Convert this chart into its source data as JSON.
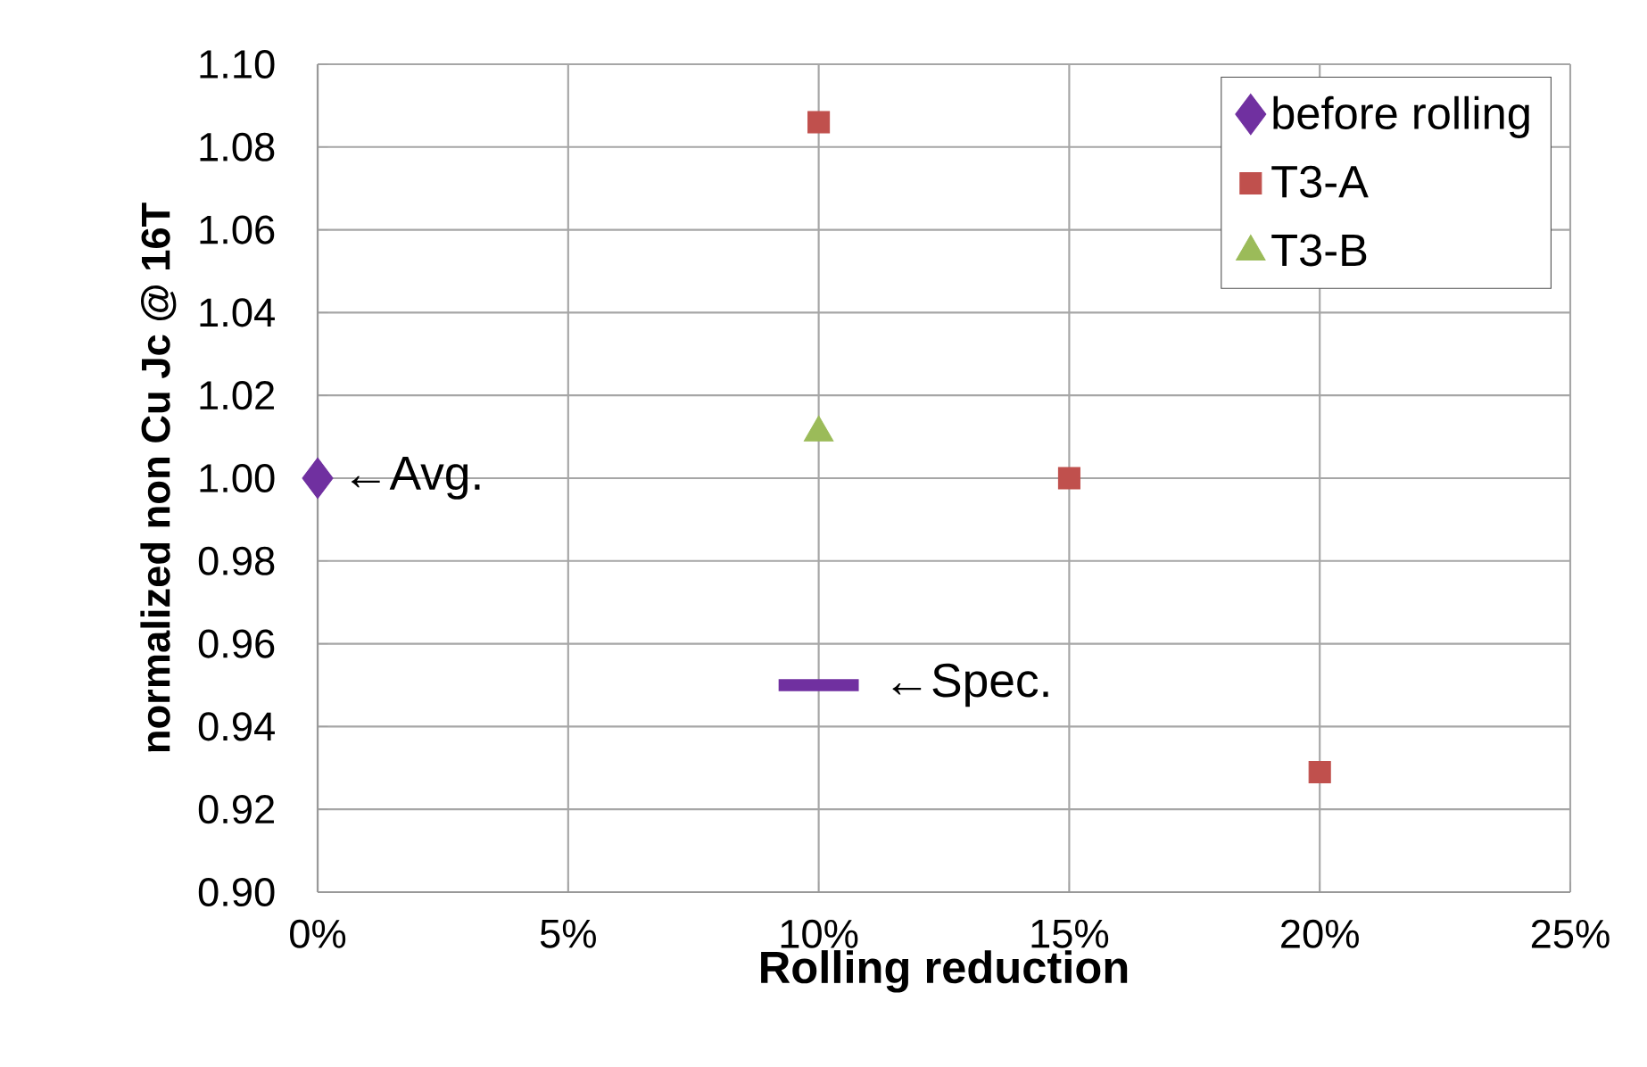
{
  "chart_data": {
    "type": "scatter",
    "xlabel": "Rolling reduction",
    "ylabel": "normalized non Cu Jc @ 16T",
    "xlim": [
      0,
      25
    ],
    "ylim": [
      0.9,
      1.1
    ],
    "xticks": [
      {
        "value": 0,
        "label": "0%"
      },
      {
        "value": 5,
        "label": "5%"
      },
      {
        "value": 10,
        "label": "10%"
      },
      {
        "value": 15,
        "label": "15%"
      },
      {
        "value": 20,
        "label": "20%"
      },
      {
        "value": 25,
        "label": "25%"
      }
    ],
    "yticks": [
      {
        "value": 0.9,
        "label": "0.90"
      },
      {
        "value": 0.92,
        "label": "0.92"
      },
      {
        "value": 0.94,
        "label": "0.94"
      },
      {
        "value": 0.96,
        "label": "0.96"
      },
      {
        "value": 0.98,
        "label": "0.98"
      },
      {
        "value": 1.0,
        "label": "1.00"
      },
      {
        "value": 1.02,
        "label": "1.02"
      },
      {
        "value": 1.04,
        "label": "1.04"
      },
      {
        "value": 1.06,
        "label": "1.06"
      },
      {
        "value": 1.08,
        "label": "1.08"
      },
      {
        "value": 1.1,
        "label": "1.10"
      }
    ],
    "grid": true,
    "legend": "top right",
    "series": [
      {
        "name": "before rolling",
        "color": "#7030a0",
        "marker": "diamond",
        "x": [
          0
        ],
        "values": [
          1.0
        ]
      },
      {
        "name": "T3-A",
        "color": "#c0504d",
        "marker": "square",
        "x": [
          10,
          15,
          20
        ],
        "values": [
          1.086,
          1.0,
          0.929
        ]
      },
      {
        "name": "T3-B",
        "color": "#9bbb59",
        "marker": "triangle",
        "x": [
          10
        ],
        "values": [
          1.011
        ]
      },
      {
        "type": "line",
        "color": "#7030a0",
        "marker": "none",
        "line_style": "solid",
        "x": [
          9.2,
          10.8
        ],
        "values": [
          0.95,
          0.95
        ]
      }
    ],
    "annotations": [
      {
        "text": "←Avg.",
        "x": 0,
        "y": 1.0
      },
      {
        "text": "←Spec.",
        "x": 10.8,
        "y": 0.95
      }
    ]
  }
}
